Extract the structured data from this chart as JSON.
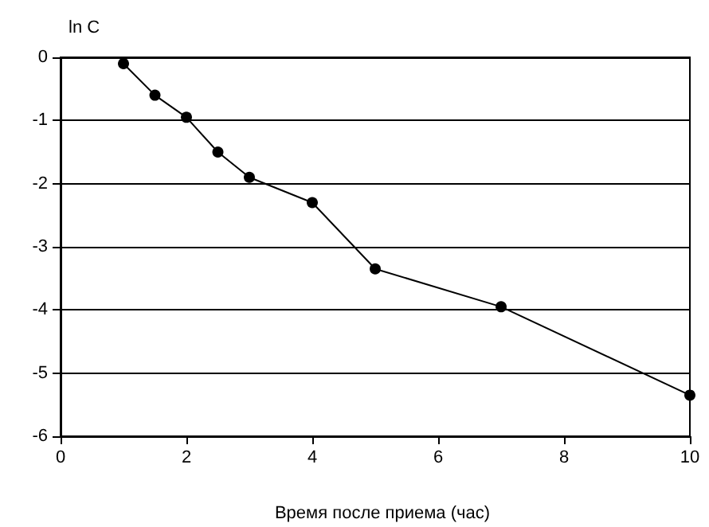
{
  "chart_data": {
    "type": "line",
    "xlabel": "Время после приема (час)",
    "ylabel": "ln C",
    "x": [
      1,
      1.5,
      2,
      2.5,
      3,
      4,
      5,
      7,
      10
    ],
    "series": [
      {
        "color": "#000000",
        "values": [
          -0.1,
          -0.6,
          -0.95,
          -1.5,
          -1.9,
          -2.3,
          -3.35,
          -3.95,
          -5.35
        ]
      }
    ],
    "xlim": [
      0,
      10
    ],
    "xticks": [
      0,
      2,
      4,
      6,
      8,
      10
    ],
    "ylim": [
      -6,
      0
    ],
    "yticks": [
      -6,
      -5,
      -4,
      -3,
      -2,
      -1,
      0
    ],
    "grid": "y",
    "marker": "circle",
    "line_style": "solid"
  }
}
